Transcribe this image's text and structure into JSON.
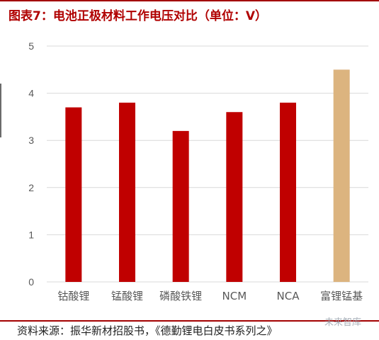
{
  "figure": {
    "title": "图表7：电池正极材料工作电压对比（单位：V）",
    "source": "资料来源：振华新材招股书，《德勤锂电白皮书系列之》",
    "watermark": "未来智库"
  },
  "colors": {
    "title": "#b00000",
    "bar_primary": "#c00000",
    "bar_highlight": "#dcb47f",
    "grid": "#d9d9d9",
    "axis_text": "#595959",
    "rule": "#a30000"
  },
  "chart_data": {
    "type": "bar",
    "categories": [
      "钴酸锂",
      "锰酸锂",
      "磷酸铁锂",
      "NCM",
      "NCA",
      "富锂锰基"
    ],
    "values": [
      3.7,
      3.8,
      3.2,
      3.6,
      3.8,
      4.5
    ],
    "highlight_index": 5,
    "yticks": [
      0,
      1,
      2,
      3,
      4,
      5
    ],
    "ylim": [
      0,
      5
    ],
    "grid": true,
    "title": "",
    "xlabel": "",
    "ylabel": ""
  }
}
